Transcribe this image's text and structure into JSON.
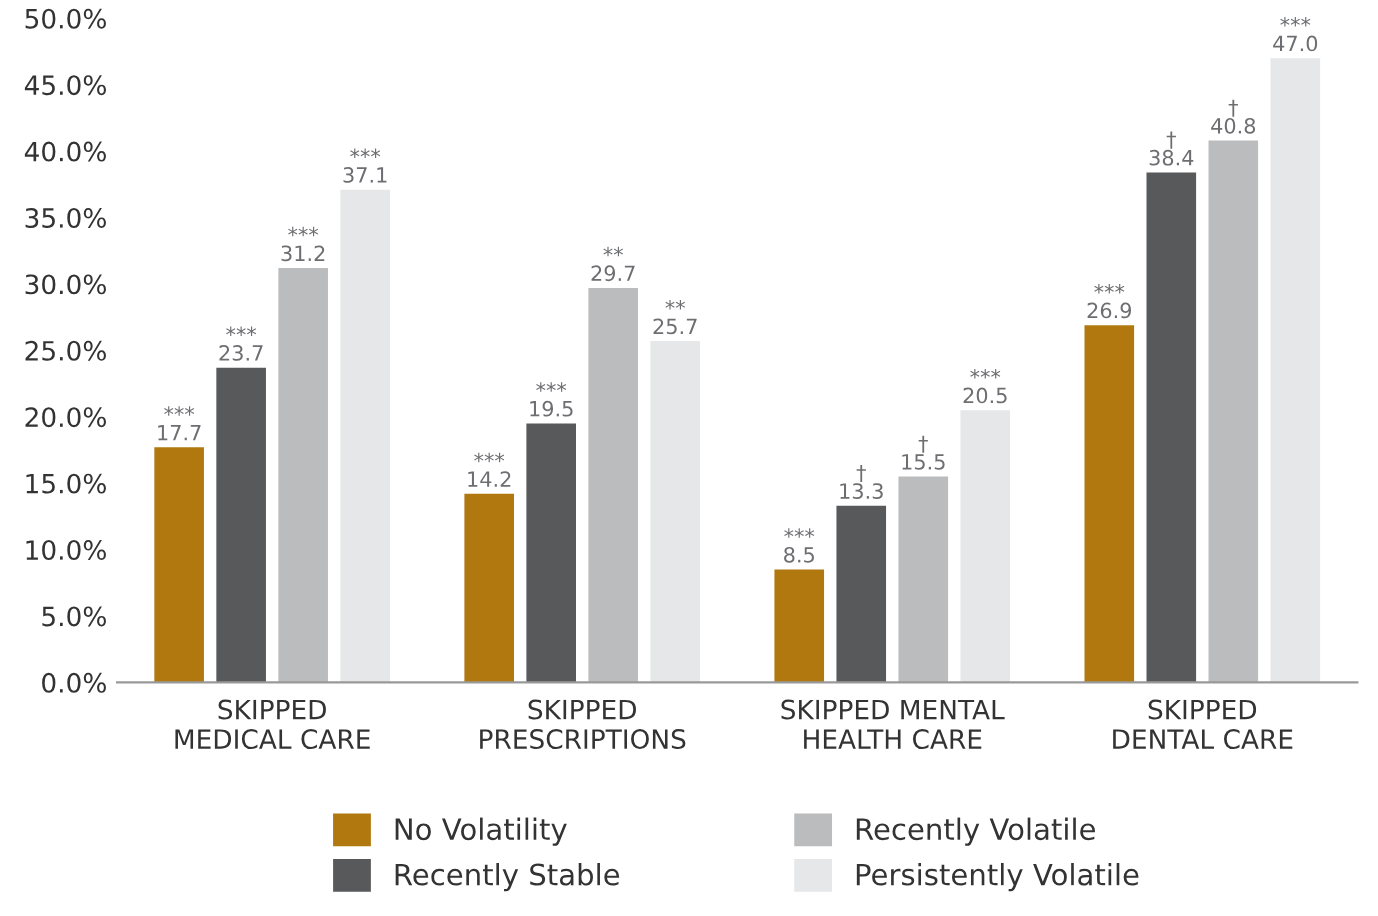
{
  "chart_data": {
    "type": "bar",
    "categories": [
      "SKIPPED\nMEDICAL CARE",
      "SKIPPED\nPRESCRIPTIONS",
      "SKIPPED MENTAL\nHEALTH CARE",
      "SKIPPED\nDENTAL CARE"
    ],
    "series": [
      {
        "name": "No Volatility",
        "color": "#b0780f",
        "values": [
          17.7,
          14.2,
          8.5,
          26.9
        ],
        "value_labels": [
          "***\n17.7",
          "***\n14.2",
          "***\n8.5",
          "***\n26.9"
        ]
      },
      {
        "name": "Recently Stable",
        "color": "#58595b",
        "values": [
          23.7,
          19.5,
          13.3,
          38.4
        ],
        "value_labels": [
          "***\n23.7",
          "***\n19.5",
          "†\n13.3",
          "†\n38.4"
        ]
      },
      {
        "name": "Recently Volatile",
        "color": "#bbbcbe",
        "values": [
          31.2,
          29.7,
          15.5,
          40.8
        ],
        "value_labels": [
          "***\n31.2",
          "**\n29.7",
          "†\n15.5",
          "†\n40.8"
        ]
      },
      {
        "name": "Persistently Volatile",
        "color": "#e6e7e8",
        "values": [
          37.1,
          25.7,
          20.5,
          47.0
        ],
        "value_labels": [
          "***\n37.1",
          "**\n25.7",
          "***\n20.5",
          "***\n47.0"
        ]
      }
    ],
    "ylim": [
      0,
      50
    ],
    "yticks": [
      {
        "value": 0,
        "label": "0.0%"
      },
      {
        "value": 5,
        "label": "5.0%"
      },
      {
        "value": 10,
        "label": "10.0%"
      },
      {
        "value": 15,
        "label": "15.0%"
      },
      {
        "value": 20,
        "label": "20.0%"
      },
      {
        "value": 25,
        "label": "25.0%"
      },
      {
        "value": 30,
        "label": "30.0%"
      },
      {
        "value": 35,
        "label": "35.0%"
      },
      {
        "value": 40,
        "label": "40.0%"
      },
      {
        "value": 45,
        "label": "45.0%"
      },
      {
        "value": 50,
        "label": "50.0%"
      }
    ],
    "grid": false,
    "legend": "bottom"
  }
}
